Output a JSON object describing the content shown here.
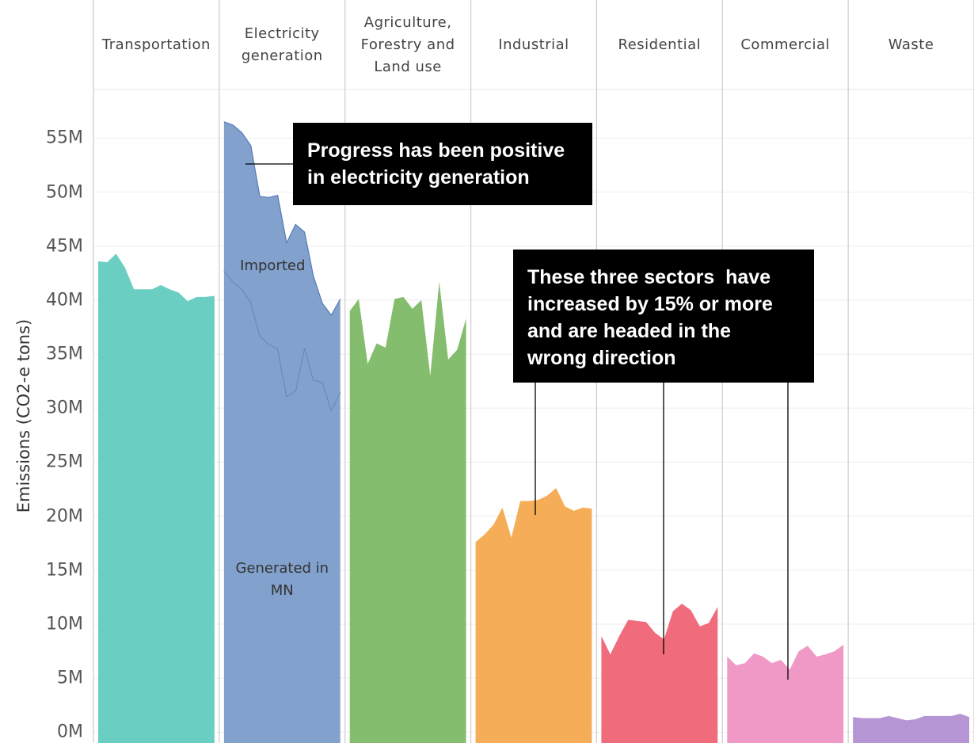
{
  "chart_data": {
    "type": "area",
    "ylabel": "Emissions (CO2-e tons)",
    "ylim": [
      -1,
      59.5
    ],
    "yticks": [
      {
        "value": 0,
        "label": "0M"
      },
      {
        "value": 5,
        "label": "5M"
      },
      {
        "value": 10,
        "label": "10M"
      },
      {
        "value": 15,
        "label": "15M"
      },
      {
        "value": 20,
        "label": "20M"
      },
      {
        "value": 25,
        "label": "25M"
      },
      {
        "value": 30,
        "label": "30M"
      },
      {
        "value": 35,
        "label": "35M"
      },
      {
        "value": 40,
        "label": "40M"
      },
      {
        "value": 45,
        "label": "45M"
      },
      {
        "value": 50,
        "label": "50M"
      },
      {
        "value": 55,
        "label": "55M"
      }
    ],
    "grid": true,
    "panels": [
      {
        "title": "Transportation",
        "series": [
          {
            "color": "#63cbbf",
            "values": [
              43.6,
              43.5,
              44.3,
              43.0,
              41.0,
              41.0,
              41.0,
              41.4,
              41.0,
              40.7,
              39.9,
              40.3,
              40.3,
              40.4
            ]
          }
        ]
      },
      {
        "title": "Electricity generation",
        "series": [
          {
            "name": "Generated in MN",
            "color": "#7b9cc9",
            "values": [
              42.7,
              41.7,
              41.0,
              39.8,
              36.7,
              35.9,
              35.5,
              31.1,
              31.6,
              35.6,
              32.6,
              32.4,
              29.8,
              31.5
            ]
          },
          {
            "name": "Imported",
            "color": "#7b9cc9",
            "values": [
              13.8,
              14.5,
              14.5,
              14.5,
              12.9,
              13.6,
              14.2,
              14.2,
              15.4,
              10.7,
              9.6,
              7.3,
              8.8,
              8.6
            ]
          }
        ]
      },
      {
        "title": "Agriculture, Forestry and Land use",
        "series": [
          {
            "color": "#7db966",
            "values": [
              39.0,
              40.1,
              34.1,
              36.0,
              35.6,
              40.1,
              40.3,
              39.2,
              40.0,
              33.0,
              41.7,
              34.5,
              35.4,
              38.3
            ]
          }
        ]
      },
      {
        "title": "Industrial",
        "series": [
          {
            "color": "#f6a94e",
            "values": [
              17.6,
              18.3,
              19.2,
              20.8,
              18.0,
              21.4,
              21.4,
              21.5,
              21.9,
              22.6,
              20.9,
              20.5,
              20.8,
              20.7
            ]
          }
        ]
      },
      {
        "title": "Residential",
        "series": [
          {
            "color": "#ef6375",
            "values": [
              8.9,
              7.2,
              8.9,
              10.4,
              10.3,
              10.2,
              9.2,
              8.6,
              11.2,
              11.9,
              11.3,
              9.8,
              10.1,
              11.6
            ]
          }
        ]
      },
      {
        "title": "Commercial",
        "series": [
          {
            "color": "#ef94c4",
            "values": [
              7.0,
              6.2,
              6.4,
              7.3,
              7.0,
              6.4,
              6.7,
              5.8,
              7.5,
              8.0,
              7.0,
              7.2,
              7.5,
              8.1
            ]
          }
        ]
      },
      {
        "title": "Waste",
        "series": [
          {
            "color": "#b28fd2",
            "values": [
              1.4,
              1.3,
              1.3,
              1.3,
              1.5,
              1.3,
              1.1,
              1.2,
              1.5,
              1.5,
              1.5,
              1.5,
              1.7,
              1.4
            ]
          }
        ]
      }
    ],
    "annotations": [
      {
        "lines": [
          "Progress has been positive",
          "in electricity generation"
        ]
      },
      {
        "lines": [
          "These three sectors  have",
          "increased by 15% or more",
          "and are headed in the",
          "wrong direction"
        ]
      }
    ]
  }
}
